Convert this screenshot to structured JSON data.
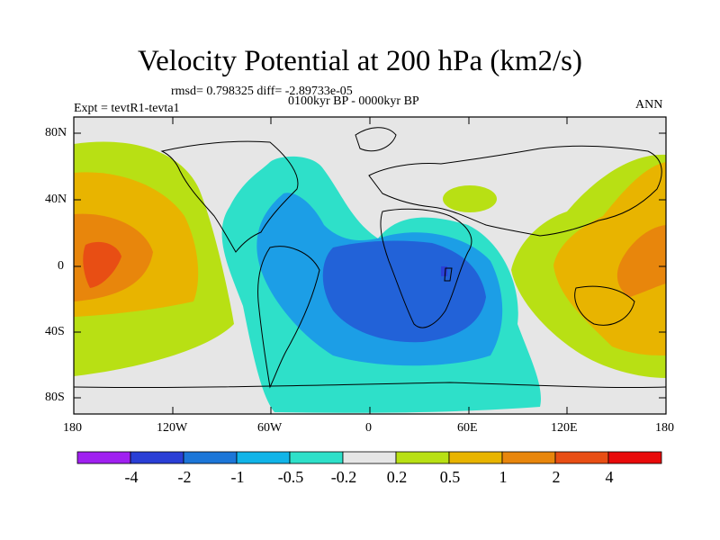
{
  "title": "Velocity Potential at 200 hPa (km2/s)",
  "stats": "rmsd= 0.798325  diff= -2.89733e-05",
  "experiment": "Expt = tevtR1-tevta1",
  "period": "0100kyr BP - 0000kyr BP",
  "season": "ANN",
  "lat_labels": [
    "80N",
    "40N",
    "0",
    "40S",
    "80S"
  ],
  "lon_labels": [
    "180",
    "120W",
    "60W",
    "0",
    "60E",
    "120E",
    "180"
  ],
  "colorbar": {
    "labels": [
      "-4",
      "-2",
      "-1",
      "-0.5",
      "-0.2",
      "0.2",
      "0.5",
      "1",
      "2",
      "4"
    ],
    "colors": [
      "#a020f0",
      "#2a3fd6",
      "#1c76d8",
      "#11b4e8",
      "#2ee0c9",
      "#e6e6e6",
      "#b8e014",
      "#e8b400",
      "#e8860c",
      "#e84e14",
      "#e80a0a"
    ]
  },
  "palette": {
    "neg_strong": "#2262d8",
    "neg_mid": "#1c9ee6",
    "neg_weak": "#2ee0c9",
    "neutral": "#e6e6e6",
    "pos_weak": "#b8e014",
    "pos_mid": "#e8b400",
    "pos_strong": "#e8860c",
    "pos_max": "#e84e14",
    "spot": "#2a3fd6"
  }
}
